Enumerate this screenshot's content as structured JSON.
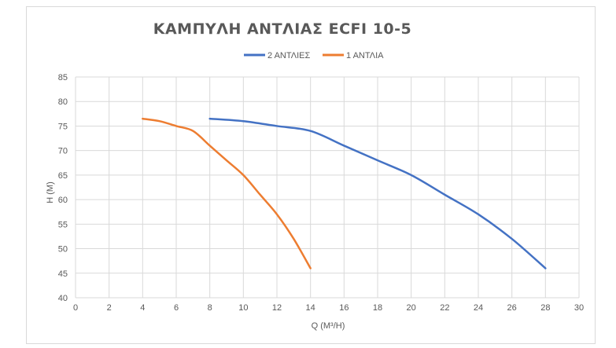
{
  "chart_data": {
    "type": "line",
    "title": "ΚΑΜΠΥΛΗ ΑΝΤΛΙΑΣ ECFI 10-5",
    "xlabel": "Q (M³/H)",
    "ylabel": "H (M)",
    "xlim": [
      0,
      30
    ],
    "ylim": [
      40,
      85
    ],
    "x_ticks": [
      "0",
      "2",
      "4",
      "6",
      "8",
      "10",
      "12",
      "14",
      "16",
      "18",
      "20",
      "22",
      "24",
      "26",
      "28",
      "30"
    ],
    "y_ticks": [
      "40",
      "45",
      "50",
      "55",
      "60",
      "65",
      "70",
      "75",
      "80",
      "85"
    ],
    "grid": true,
    "legend_position": "top",
    "series": [
      {
        "name": "2 ΑΝΤΛΙΕΣ",
        "color": "#4472c4",
        "x": [
          8,
          10,
          12,
          14,
          16,
          18,
          20,
          22,
          24,
          26,
          28
        ],
        "y": [
          76.5,
          76,
          75,
          74,
          71,
          68,
          65,
          61,
          57,
          52,
          46
        ]
      },
      {
        "name": "1 ΑΝΤΛΙΑ",
        "color": "#ed7d31",
        "x": [
          4,
          5,
          6,
          7,
          8,
          9,
          10,
          11,
          12,
          13,
          14
        ],
        "y": [
          76.5,
          76,
          75,
          74,
          71,
          68,
          65,
          61,
          57,
          52,
          46
        ]
      }
    ]
  }
}
